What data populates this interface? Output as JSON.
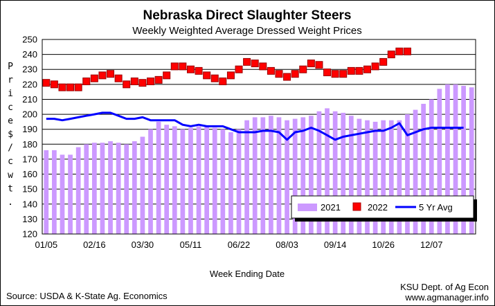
{
  "footer": {
    "source": "Source:  USDA & K-State Ag. Economics",
    "credit_line1": "KSU Dept. of Ag Econ",
    "credit_line2": "www.agmanager.info"
  },
  "chart_data": {
    "type": "bar+line",
    "title": "Nebraska Direct Slaughter Steers",
    "subtitle": "Weekly Weighted Average Dressed Weight Prices",
    "xlabel": "Week Ending Date",
    "ylabel": "Price $/cwt.",
    "ylim": [
      120,
      250
    ],
    "yticks": [
      120,
      130,
      140,
      150,
      160,
      170,
      180,
      190,
      200,
      210,
      220,
      230,
      240,
      250
    ],
    "xtick_labels": [
      "01/05",
      "02/16",
      "03/30",
      "05/11",
      "06/22",
      "08/03",
      "09/14",
      "10/26",
      "12/07"
    ],
    "xtick_every": 6,
    "grid": "horizontal",
    "legend_position": "bottom-right",
    "series": [
      {
        "name": "2021",
        "kind": "bar",
        "color": "#cc99ff",
        "values": [
          176,
          176,
          173,
          173,
          178,
          180,
          181,
          181,
          182,
          181,
          180,
          182,
          185,
          190,
          195,
          193,
          192,
          190,
          191,
          192,
          192,
          191,
          190,
          188,
          190,
          196,
          198,
          198,
          199,
          198,
          196,
          197,
          198,
          199,
          202,
          204,
          202,
          201,
          199,
          197,
          196,
          195,
          196,
          196,
          196,
          200,
          203,
          207,
          210,
          217,
          220,
          220,
          219,
          218
        ]
      },
      {
        "name": "2022",
        "kind": "marker",
        "color": "#ff0000",
        "values": [
          221,
          220,
          218,
          218,
          218,
          222,
          224,
          226,
          227,
          224,
          220,
          222,
          221,
          222,
          223,
          226,
          232,
          232,
          230,
          229,
          226,
          224,
          222,
          226,
          230,
          235,
          234,
          232,
          229,
          227,
          225,
          227,
          230,
          234,
          233,
          228,
          227,
          227,
          229,
          229,
          230,
          232,
          235,
          240,
          242,
          242
        ]
      },
      {
        "name": "5 Yr Avg",
        "kind": "line",
        "color": "#0000ff",
        "values": [
          197,
          197,
          196,
          197,
          198,
          199,
          200,
          201,
          201,
          199,
          197,
          197,
          198,
          196,
          196,
          196,
          196,
          193,
          192,
          193,
          192,
          192,
          192,
          190,
          188,
          188,
          188,
          189,
          189,
          188,
          183,
          188,
          189,
          191,
          189,
          186,
          183,
          185,
          186,
          187,
          188,
          189,
          189,
          191,
          194,
          186,
          188,
          190,
          191,
          191,
          191,
          191,
          191
        ]
      }
    ]
  }
}
